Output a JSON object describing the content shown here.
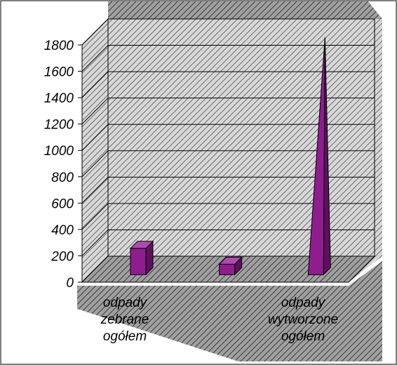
{
  "chart_data": {
    "type": "bar",
    "bar_style": "3d-column-cylinder-pyramid-mixed",
    "categories": [
      [
        "odpady",
        "zebrane",
        "ogółem"
      ],
      [],
      [
        "odpady",
        "wytworzone",
        "ogółem"
      ]
    ],
    "values": [
      200,
      80,
      1800
    ],
    "shapes": [
      "box",
      "box",
      "pyramid"
    ],
    "ylim": [
      0,
      1800
    ],
    "y_ticks": [
      0,
      200,
      400,
      600,
      800,
      1000,
      1200,
      1400,
      1600,
      1800
    ],
    "title": "",
    "xlabel": "",
    "ylabel": "",
    "grid": true,
    "legend": "none",
    "colors": {
      "bar_front": "#8f1d8f",
      "bar_side": "#5e0f5e",
      "bar_top": "#b04ab0",
      "wall_fill": "#c9c9c9",
      "floor_fill": "#a7a7a7",
      "gridline": "#000000",
      "frame": "#000000"
    }
  }
}
